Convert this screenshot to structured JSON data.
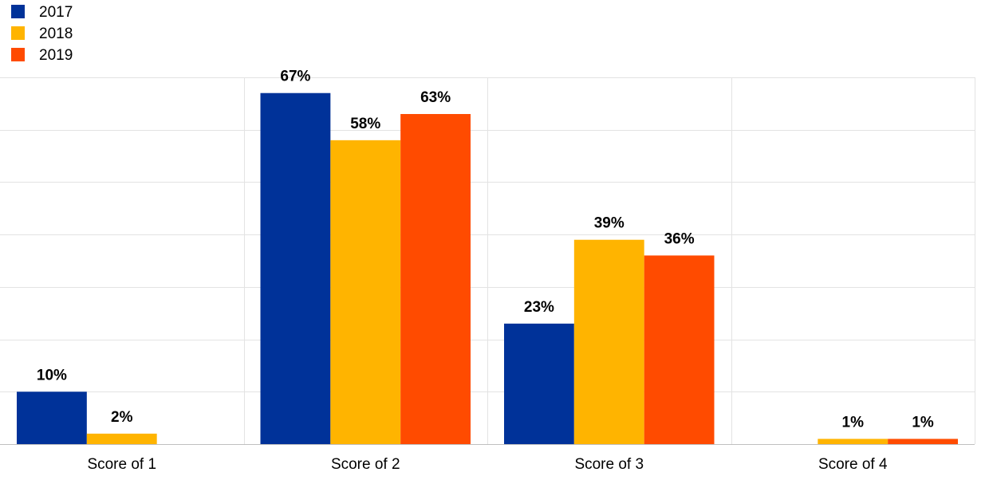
{
  "chart_data": {
    "type": "bar",
    "categories": [
      "Score of 1",
      "Score of 2",
      "Score of 3",
      "Score of 4"
    ],
    "series": [
      {
        "name": "2017",
        "color": "#003299",
        "values": [
          10,
          67,
          23,
          null
        ],
        "labels": [
          "10%",
          "67%",
          "23%",
          ""
        ]
      },
      {
        "name": "2018",
        "color": "#FFB400",
        "values": [
          2,
          58,
          39,
          1
        ],
        "labels": [
          "2%",
          "58%",
          "39%",
          "1%"
        ]
      },
      {
        "name": "2019",
        "color": "#FF4B00",
        "values": [
          null,
          63,
          36,
          1
        ],
        "labels": [
          "",
          "63%",
          "36%",
          "1%"
        ]
      }
    ],
    "ylim": [
      0,
      70
    ],
    "grid": true,
    "legend_position": "top-left"
  }
}
